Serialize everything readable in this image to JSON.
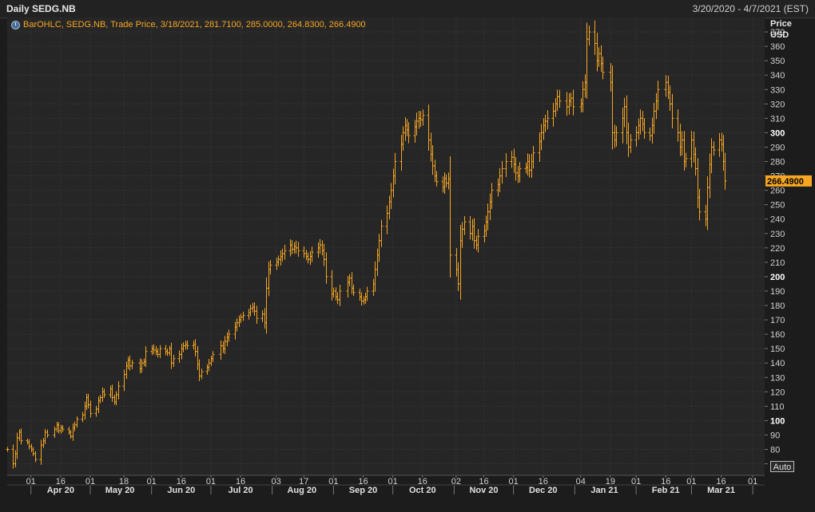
{
  "title_left": "Daily SEDG.NB",
  "title_right": "3/20/2020 - 4/7/2021 (EST)",
  "legend": "BarOHLC, SEDG.NB, Trade Price,  3/18/2021, 281.7100, 285.0000, 264.8300, 266.4900",
  "auto_label": "Auto",
  "colors": {
    "series": "#f5a623",
    "background": "#262626",
    "grid": "#3a3a3a",
    "axis_text": "#d0d0d0"
  },
  "chart_data": {
    "type": "ohlc",
    "ylabel": "Price",
    "yunit": "USD",
    "ylim": [
      62,
      380
    ],
    "y_ticks": [
      70,
      80,
      90,
      100,
      110,
      120,
      130,
      140,
      150,
      160,
      170,
      180,
      190,
      200,
      210,
      220,
      230,
      240,
      250,
      260,
      270,
      280,
      290,
      300,
      310,
      320,
      330,
      340,
      350,
      360,
      370
    ],
    "y_bold_ticks": [
      100,
      200,
      300
    ],
    "last_price_label": "266.4900",
    "x_start": "2020-03-20",
    "x_end": "2021-04-07",
    "x_day_ticks": [
      {
        "date": "2020-04-01",
        "label": "01"
      },
      {
        "date": "2020-04-16",
        "label": "16"
      },
      {
        "date": "2020-05-01",
        "label": "01"
      },
      {
        "date": "2020-05-18",
        "label": "18"
      },
      {
        "date": "2020-06-01",
        "label": "01"
      },
      {
        "date": "2020-06-16",
        "label": "16"
      },
      {
        "date": "2020-07-01",
        "label": "01"
      },
      {
        "date": "2020-07-16",
        "label": "16"
      },
      {
        "date": "2020-08-03",
        "label": "03"
      },
      {
        "date": "2020-08-17",
        "label": "17"
      },
      {
        "date": "2020-09-01",
        "label": "01"
      },
      {
        "date": "2020-09-16",
        "label": "16"
      },
      {
        "date": "2020-10-01",
        "label": "01"
      },
      {
        "date": "2020-10-16",
        "label": "16"
      },
      {
        "date": "2020-11-02",
        "label": "02"
      },
      {
        "date": "2020-11-16",
        "label": "16"
      },
      {
        "date": "2020-12-01",
        "label": "01"
      },
      {
        "date": "2020-12-16",
        "label": "16"
      },
      {
        "date": "2021-01-04",
        "label": "04"
      },
      {
        "date": "2021-01-19",
        "label": "19"
      },
      {
        "date": "2021-02-01",
        "label": "01"
      },
      {
        "date": "2021-02-16",
        "label": "16"
      },
      {
        "date": "2021-03-01",
        "label": "01"
      },
      {
        "date": "2021-03-16",
        "label": "16"
      },
      {
        "date": "2021-04-01",
        "label": "01"
      }
    ],
    "x_month_labels": [
      {
        "date": "2020-04-16",
        "label": "Apr 20"
      },
      {
        "date": "2020-05-16",
        "label": "May 20"
      },
      {
        "date": "2020-06-16",
        "label": "Jun 20"
      },
      {
        "date": "2020-07-16",
        "label": "Jul 20"
      },
      {
        "date": "2020-08-16",
        "label": "Aug 20"
      },
      {
        "date": "2020-09-16",
        "label": "Sep 20"
      },
      {
        "date": "2020-10-16",
        "label": "Oct 20"
      },
      {
        "date": "2020-11-16",
        "label": "Nov 20"
      },
      {
        "date": "2020-12-16",
        "label": "Dec 20"
      },
      {
        "date": "2021-01-16",
        "label": "Jan 21"
      },
      {
        "date": "2021-02-16",
        "label": "Feb 21"
      },
      {
        "date": "2021-03-16",
        "label": "Mar 21"
      }
    ],
    "x_month_boundaries": [
      "2020-04-01",
      "2020-05-01",
      "2020-06-01",
      "2020-07-01",
      "2020-08-01",
      "2020-09-01",
      "2020-10-01",
      "2020-11-01",
      "2020-12-01",
      "2021-01-01",
      "2021-02-01",
      "2021-03-01",
      "2021-04-01"
    ],
    "closes": [
      [
        "2020-03-20",
        80
      ],
      [
        "2020-03-23",
        70
      ],
      [
        "2020-03-24",
        77
      ],
      [
        "2020-03-25",
        88
      ],
      [
        "2020-03-26",
        92
      ],
      [
        "2020-03-27",
        86
      ],
      [
        "2020-03-30",
        85
      ],
      [
        "2020-03-31",
        82
      ],
      [
        "2020-04-01",
        80
      ],
      [
        "2020-04-02",
        77
      ],
      [
        "2020-04-03",
        73
      ],
      [
        "2020-04-06",
        83
      ],
      [
        "2020-04-07",
        86
      ],
      [
        "2020-04-08",
        92
      ],
      [
        "2020-04-09",
        90
      ],
      [
        "2020-04-13",
        94
      ],
      [
        "2020-04-14",
        97
      ],
      [
        "2020-04-15",
        93
      ],
      [
        "2020-04-16",
        95
      ],
      [
        "2020-04-17",
        94
      ],
      [
        "2020-04-20",
        92
      ],
      [
        "2020-04-21",
        89
      ],
      [
        "2020-04-22",
        95
      ],
      [
        "2020-04-23",
        97
      ],
      [
        "2020-04-24",
        101
      ],
      [
        "2020-04-27",
        104
      ],
      [
        "2020-04-28",
        110
      ],
      [
        "2020-04-29",
        116
      ],
      [
        "2020-04-30",
        111
      ],
      [
        "2020-05-01",
        105
      ],
      [
        "2020-05-04",
        108
      ],
      [
        "2020-05-05",
        114
      ],
      [
        "2020-05-06",
        116
      ],
      [
        "2020-05-07",
        120
      ],
      [
        "2020-05-08",
        118
      ],
      [
        "2020-05-11",
        122
      ],
      [
        "2020-05-12",
        116
      ],
      [
        "2020-05-13",
        113
      ],
      [
        "2020-05-14",
        118
      ],
      [
        "2020-05-15",
        124
      ],
      [
        "2020-05-18",
        132
      ],
      [
        "2020-05-19",
        138
      ],
      [
        "2020-05-20",
        142
      ],
      [
        "2020-05-21",
        138
      ],
      [
        "2020-05-22",
        140
      ],
      [
        "2020-05-26",
        136
      ],
      [
        "2020-05-27",
        140
      ],
      [
        "2020-05-28",
        141
      ],
      [
        "2020-05-29",
        148
      ],
      [
        "2020-06-01",
        150
      ],
      [
        "2020-06-02",
        149
      ],
      [
        "2020-06-03",
        148
      ],
      [
        "2020-06-04",
        146
      ],
      [
        "2020-06-05",
        150
      ],
      [
        "2020-06-08",
        148
      ],
      [
        "2020-06-09",
        147
      ],
      [
        "2020-06-10",
        150
      ],
      [
        "2020-06-11",
        140
      ],
      [
        "2020-06-12",
        143
      ],
      [
        "2020-06-15",
        146
      ],
      [
        "2020-06-16",
        150
      ],
      [
        "2020-06-17",
        152
      ],
      [
        "2020-06-18",
        153
      ],
      [
        "2020-06-19",
        152
      ],
      [
        "2020-06-22",
        153
      ],
      [
        "2020-06-23",
        148
      ],
      [
        "2020-06-24",
        139
      ],
      [
        "2020-06-25",
        131
      ],
      [
        "2020-06-26",
        134
      ],
      [
        "2020-06-29",
        137
      ],
      [
        "2020-06-30",
        140
      ],
      [
        "2020-07-01",
        143
      ],
      [
        "2020-07-02",
        146
      ],
      [
        "2020-07-06",
        152
      ],
      [
        "2020-07-07",
        150
      ],
      [
        "2020-07-08",
        155
      ],
      [
        "2020-07-09",
        158
      ],
      [
        "2020-07-10",
        160
      ],
      [
        "2020-07-13",
        165
      ],
      [
        "2020-07-14",
        168
      ],
      [
        "2020-07-15",
        170
      ],
      [
        "2020-07-16",
        172
      ],
      [
        "2020-07-17",
        173
      ],
      [
        "2020-07-20",
        175
      ],
      [
        "2020-07-21",
        178
      ],
      [
        "2020-07-22",
        179
      ],
      [
        "2020-07-23",
        176
      ],
      [
        "2020-07-24",
        171
      ],
      [
        "2020-07-27",
        174
      ],
      [
        "2020-07-28",
        168
      ],
      [
        "2020-07-29",
        192
      ],
      [
        "2020-07-30",
        205
      ],
      [
        "2020-07-31",
        208
      ],
      [
        "2020-08-03",
        210
      ],
      [
        "2020-08-04",
        212
      ],
      [
        "2020-08-05",
        214
      ],
      [
        "2020-08-06",
        216
      ],
      [
        "2020-08-07",
        218
      ],
      [
        "2020-08-10",
        222
      ],
      [
        "2020-08-11",
        219
      ],
      [
        "2020-08-12",
        221
      ],
      [
        "2020-08-13",
        220
      ],
      [
        "2020-08-14",
        218
      ],
      [
        "2020-08-17",
        216
      ],
      [
        "2020-08-18",
        214
      ],
      [
        "2020-08-19",
        212
      ],
      [
        "2020-08-20",
        214
      ],
      [
        "2020-08-21",
        217
      ],
      [
        "2020-08-24",
        220
      ],
      [
        "2020-08-25",
        222
      ],
      [
        "2020-08-26",
        218
      ],
      [
        "2020-08-27",
        212
      ],
      [
        "2020-08-28",
        200
      ],
      [
        "2020-08-31",
        188
      ],
      [
        "2020-09-01",
        190
      ],
      [
        "2020-09-02",
        186
      ],
      [
        "2020-09-03",
        184
      ],
      [
        "2020-09-04",
        190
      ],
      [
        "2020-09-08",
        196
      ],
      [
        "2020-09-09",
        199
      ],
      [
        "2020-09-10",
        192
      ],
      [
        "2020-09-11",
        189
      ],
      [
        "2020-09-14",
        186
      ],
      [
        "2020-09-15",
        183
      ],
      [
        "2020-09-16",
        184
      ],
      [
        "2020-09-17",
        186
      ],
      [
        "2020-09-18",
        190
      ],
      [
        "2020-09-21",
        195
      ],
      [
        "2020-09-22",
        205
      ],
      [
        "2020-09-23",
        215
      ],
      [
        "2020-09-24",
        225
      ],
      [
        "2020-09-25",
        235
      ],
      [
        "2020-09-28",
        244
      ],
      [
        "2020-09-29",
        252
      ],
      [
        "2020-09-30",
        260
      ],
      [
        "2020-10-01",
        270
      ],
      [
        "2020-10-02",
        280
      ],
      [
        "2020-10-05",
        292
      ],
      [
        "2020-10-06",
        300
      ],
      [
        "2020-10-07",
        305
      ],
      [
        "2020-10-08",
        302
      ],
      [
        "2020-10-09",
        298
      ],
      [
        "2020-10-12",
        304
      ],
      [
        "2020-10-13",
        308
      ],
      [
        "2020-10-14",
        310
      ],
      [
        "2020-10-15",
        309
      ],
      [
        "2020-10-16",
        312
      ],
      [
        "2020-10-19",
        295
      ],
      [
        "2020-10-20",
        285
      ],
      [
        "2020-10-21",
        277
      ],
      [
        "2020-10-22",
        270
      ],
      [
        "2020-10-23",
        266
      ],
      [
        "2020-10-26",
        262
      ],
      [
        "2020-10-27",
        268
      ],
      [
        "2020-10-28",
        265
      ],
      [
        "2020-10-29",
        268
      ],
      [
        "2020-10-30",
        215
      ],
      [
        "2020-11-02",
        205
      ],
      [
        "2020-11-03",
        195
      ],
      [
        "2020-11-04",
        225
      ],
      [
        "2020-11-05",
        233
      ],
      [
        "2020-11-06",
        238
      ],
      [
        "2020-11-09",
        230
      ],
      [
        "2020-11-10",
        235
      ],
      [
        "2020-11-11",
        225
      ],
      [
        "2020-11-12",
        222
      ],
      [
        "2020-11-13",
        228
      ],
      [
        "2020-11-16",
        232
      ],
      [
        "2020-11-17",
        238
      ],
      [
        "2020-11-18",
        245
      ],
      [
        "2020-11-19",
        252
      ],
      [
        "2020-11-20",
        260
      ],
      [
        "2020-11-23",
        264
      ],
      [
        "2020-11-24",
        270
      ],
      [
        "2020-11-25",
        275
      ],
      [
        "2020-11-27",
        280
      ],
      [
        "2020-11-30",
        283
      ],
      [
        "2020-12-01",
        278
      ],
      [
        "2020-12-02",
        272
      ],
      [
        "2020-12-03",
        270
      ],
      [
        "2020-12-04",
        275
      ],
      [
        "2020-12-07",
        276
      ],
      [
        "2020-12-08",
        280
      ],
      [
        "2020-12-09",
        274
      ],
      [
        "2020-12-10",
        280
      ],
      [
        "2020-12-11",
        286
      ],
      [
        "2020-12-14",
        294
      ],
      [
        "2020-12-15",
        300
      ],
      [
        "2020-12-16",
        305
      ],
      [
        "2020-12-17",
        308
      ],
      [
        "2020-12-18",
        310
      ],
      [
        "2020-12-21",
        315
      ],
      [
        "2020-12-22",
        320
      ],
      [
        "2020-12-23",
        325
      ],
      [
        "2020-12-24",
        322
      ],
      [
        "2020-12-28",
        318
      ],
      [
        "2020-12-29",
        322
      ],
      [
        "2020-12-30",
        324
      ],
      [
        "2020-12-31",
        318
      ],
      [
        "2021-01-04",
        320
      ],
      [
        "2021-01-05",
        330
      ],
      [
        "2021-01-06",
        335
      ],
      [
        "2021-01-07",
        365
      ],
      [
        "2021-01-08",
        370
      ],
      [
        "2021-01-11",
        362
      ],
      [
        "2021-01-12",
        350
      ],
      [
        "2021-01-13",
        355
      ],
      [
        "2021-01-14",
        348
      ],
      [
        "2021-01-15",
        342
      ],
      [
        "2021-01-19",
        335
      ],
      [
        "2021-01-20",
        300
      ],
      [
        "2021-01-21",
        295
      ],
      [
        "2021-01-22",
        300
      ],
      [
        "2021-01-25",
        310
      ],
      [
        "2021-01-26",
        318
      ],
      [
        "2021-01-27",
        300
      ],
      [
        "2021-01-28",
        290
      ],
      [
        "2021-01-29",
        295
      ],
      [
        "2021-02-01",
        300
      ],
      [
        "2021-02-02",
        305
      ],
      [
        "2021-02-03",
        310
      ],
      [
        "2021-02-04",
        306
      ],
      [
        "2021-02-05",
        300
      ],
      [
        "2021-02-08",
        298
      ],
      [
        "2021-02-09",
        305
      ],
      [
        "2021-02-10",
        315
      ],
      [
        "2021-02-11",
        322
      ],
      [
        "2021-02-12",
        330
      ],
      [
        "2021-02-16",
        335
      ],
      [
        "2021-02-17",
        328
      ],
      [
        "2021-02-18",
        320
      ],
      [
        "2021-02-19",
        310
      ],
      [
        "2021-02-22",
        300
      ],
      [
        "2021-02-23",
        290
      ],
      [
        "2021-02-24",
        295
      ],
      [
        "2021-02-25",
        280
      ],
      [
        "2021-02-26",
        282
      ],
      [
        "2021-03-01",
        295
      ],
      [
        "2021-03-02",
        285
      ],
      [
        "2021-03-03",
        275
      ],
      [
        "2021-03-04",
        255
      ],
      [
        "2021-03-05",
        245
      ],
      [
        "2021-03-08",
        240
      ],
      [
        "2021-03-09",
        262
      ],
      [
        "2021-03-10",
        278
      ],
      [
        "2021-03-11",
        290
      ],
      [
        "2021-03-12",
        288
      ],
      [
        "2021-03-15",
        295
      ],
      [
        "2021-03-16",
        292
      ],
      [
        "2021-03-17",
        280
      ],
      [
        "2021-03-18",
        266.49
      ]
    ]
  }
}
